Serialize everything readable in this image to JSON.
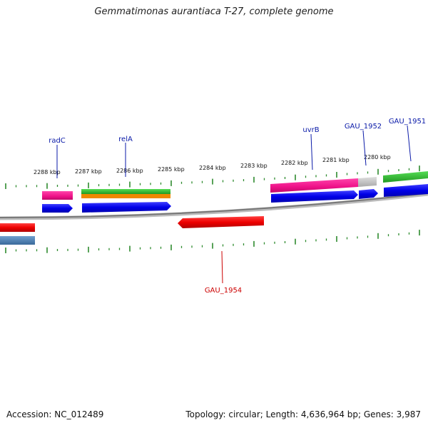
{
  "title": "Gemmatimonas aurantiaca T-27, complete genome",
  "footer": {
    "accession": "Accession: NC_012489",
    "info": "Topology: circular; Length: 4,636,964 bp; Genes: 3,987"
  },
  "axis": {
    "tick_labels": [
      "2288 kbp",
      "2287 kbp",
      "2286 kbp",
      "2285 kbp",
      "2284 kbp",
      "2283 kbp",
      "2282 kbp",
      "2281 kbp",
      "2280 kbp"
    ]
  },
  "gene_labels": {
    "radC": "radC",
    "relA": "relA",
    "uvrB": "uvrB",
    "gau1952": "GAU_1952",
    "gau1951": "GAU_1951",
    "gau1954": "GAU_1954"
  },
  "colors": {
    "forward_label": "#0a1aa8",
    "reverse_label": "#cc0000",
    "tick": "#2e8b2e",
    "backbone": "#888888",
    "cds_blue": "#0000ee",
    "cds_red": "#ee0000",
    "rna_pink": "#ee1188",
    "rna_green": "#33bb33",
    "rna_orange": "#ee8800",
    "gray_feature": "#bbbbbb",
    "steel_blue": "#4a7fb0"
  }
}
